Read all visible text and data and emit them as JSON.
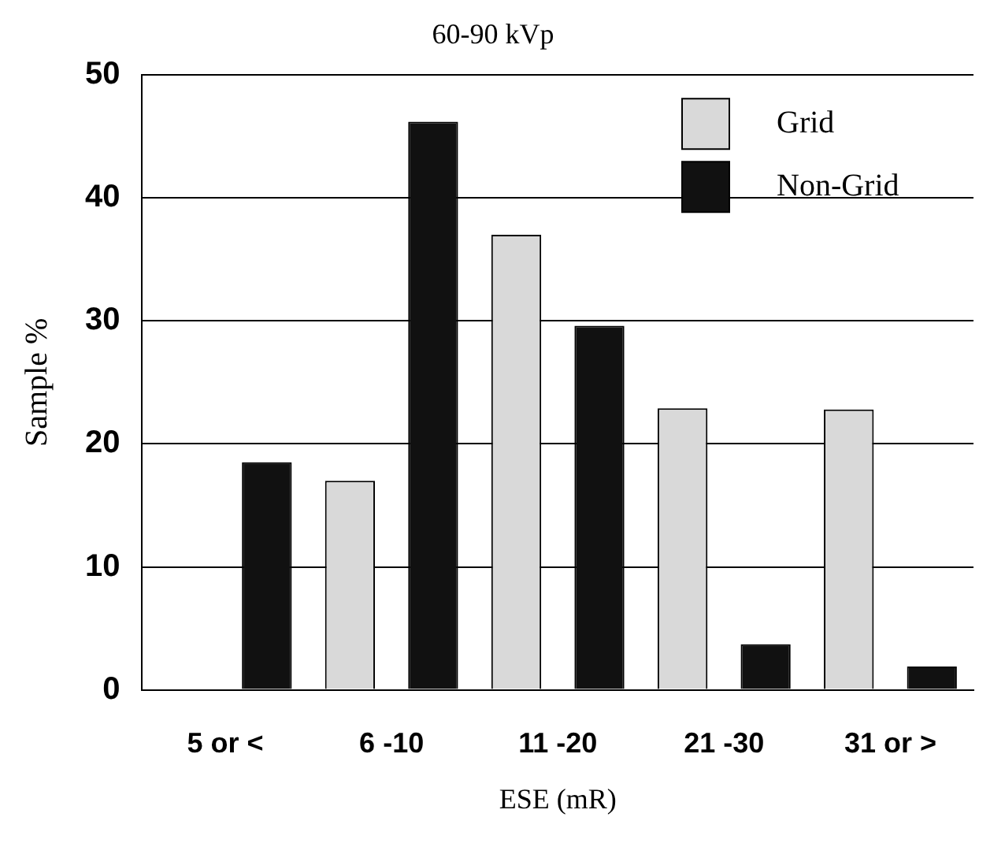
{
  "chart_data": {
    "type": "bar",
    "title": "60-90 kVp",
    "xlabel": "ESE (mR)",
    "ylabel": "Sample %",
    "categories": [
      "5 or <",
      "6 -10",
      "11 -20",
      "21 -30",
      "31 or >"
    ],
    "series": [
      {
        "name": "Grid",
        "color": "#d9d9d9",
        "values": [
          0,
          17.0,
          37.0,
          22.9,
          22.8
        ]
      },
      {
        "name": "Non-Grid",
        "color": "#111111",
        "values": [
          18.5,
          46.2,
          29.6,
          3.7,
          1.9
        ]
      }
    ],
    "ylim": [
      0,
      50
    ],
    "yticks": [
      0,
      10,
      20,
      30,
      40,
      50
    ],
    "grid": "y",
    "legend": "top right"
  }
}
